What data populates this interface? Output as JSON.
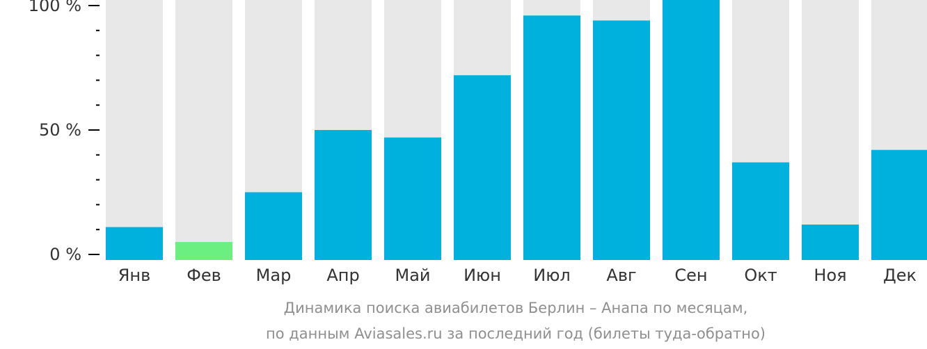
{
  "chart_data": {
    "type": "bar",
    "categories": [
      "Янв",
      "Фев",
      "Мар",
      "Апр",
      "Май",
      "Июн",
      "Июл",
      "Авг",
      "Сен",
      "Окт",
      "Ноя",
      "Дек"
    ],
    "values": [
      11,
      5,
      25,
      50,
      47,
      72,
      96,
      94,
      105,
      37,
      12,
      42
    ],
    "highlight_index": 1,
    "ylim": [
      0,
      100
    ],
    "yticks": [
      {
        "value": 0,
        "label": "0 %"
      },
      {
        "value": 50,
        "label": "50 %"
      },
      {
        "value": 100,
        "label": "100 %"
      }
    ],
    "ylabel": "",
    "xlabel": "",
    "legend": "none",
    "grid": false,
    "colors": {
      "bar": "#00b1dd",
      "highlight": "#6bef80",
      "background_bar": "#e8e8e8",
      "axis": "#000000",
      "tick_text": "#333333",
      "caption": "#8f8f8f"
    }
  },
  "caption": {
    "line1": "Динамика поиска авиабилетов Берлин – Анапа по месяцам,",
    "line2": "по данным Aviasales.ru за последний год (билеты туда-обратно)"
  }
}
